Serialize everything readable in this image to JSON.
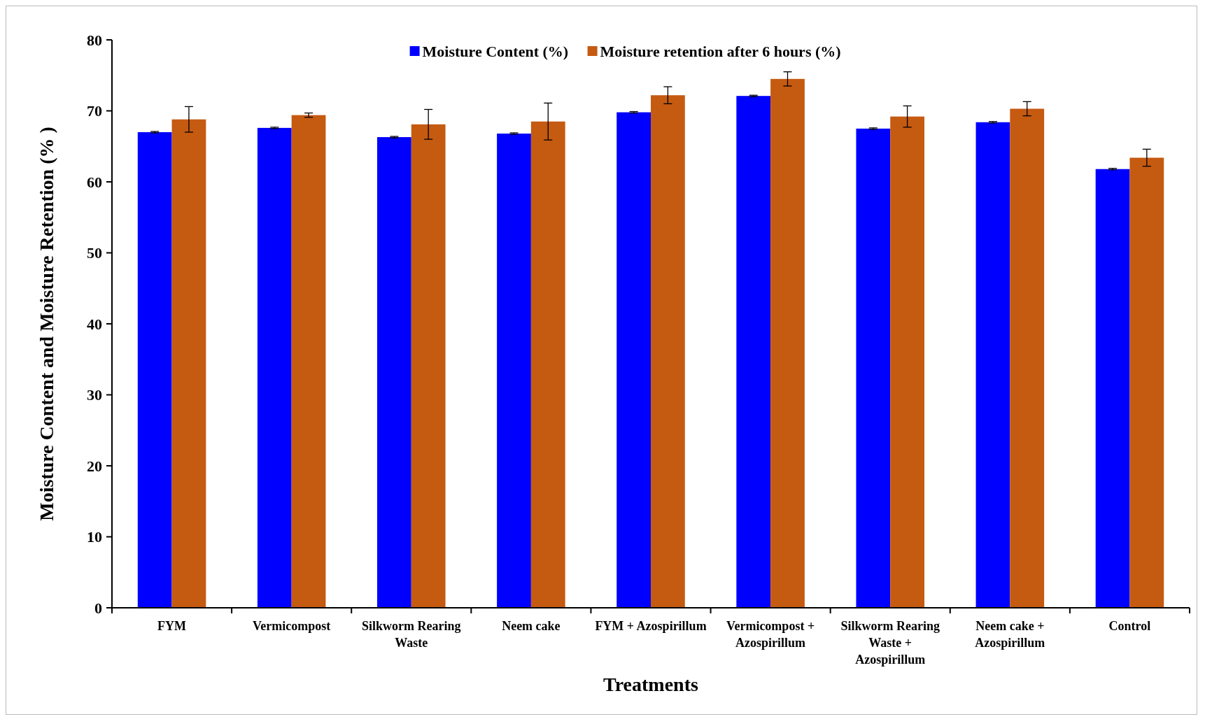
{
  "chart_data": {
    "type": "bar",
    "xlabel": "Treatments",
    "ylabel": "Moisture Content and Moisture Retention (% )",
    "categories": [
      "FYM",
      "Vermicompost",
      "Silkworm Rearing Waste",
      "Neem cake",
      "FYM + Azospirillum",
      "Vermicompost + Azospirillum",
      "Silkworm Rearing Waste + Azospirillum",
      "Neem cake + Azospirillum",
      "Control"
    ],
    "series": [
      {
        "name": "Moisture Content (%)",
        "color": "#0000ff",
        "values": [
          67.0,
          67.6,
          66.3,
          66.8,
          69.8,
          72.1,
          67.5,
          68.4,
          61.8
        ],
        "errors": [
          0.1,
          0.1,
          0.1,
          0.1,
          0.1,
          0.1,
          0.1,
          0.1,
          0.1
        ]
      },
      {
        "name": "Moisture retention after 6 hours (%)",
        "color": "#c55a11",
        "values": [
          68.8,
          69.4,
          68.1,
          68.5,
          72.2,
          74.5,
          69.2,
          70.3,
          63.4
        ],
        "errors": [
          1.8,
          0.3,
          2.1,
          2.6,
          1.2,
          1.0,
          1.5,
          1.0,
          1.2
        ]
      }
    ],
    "ylim": [
      0,
      80
    ],
    "yticks": [
      0,
      10,
      20,
      30,
      40,
      50,
      60,
      70,
      80
    ],
    "grid": false,
    "legend": "top"
  }
}
